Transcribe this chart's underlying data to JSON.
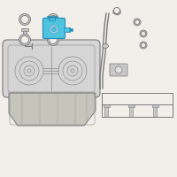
{
  "bg_color": "#f2efea",
  "line_color": "#7a7a7a",
  "dark_line": "#555555",
  "blue_fill": "#4ec4e0",
  "blue_edge": "#2a90b8",
  "gray_fill": "#c8c8c8",
  "gray_edge": "#888888",
  "light_fill": "#e0e0e0",
  "tank_fill": "#d5d5d5",
  "shield_fill": "#c5c5bc"
}
